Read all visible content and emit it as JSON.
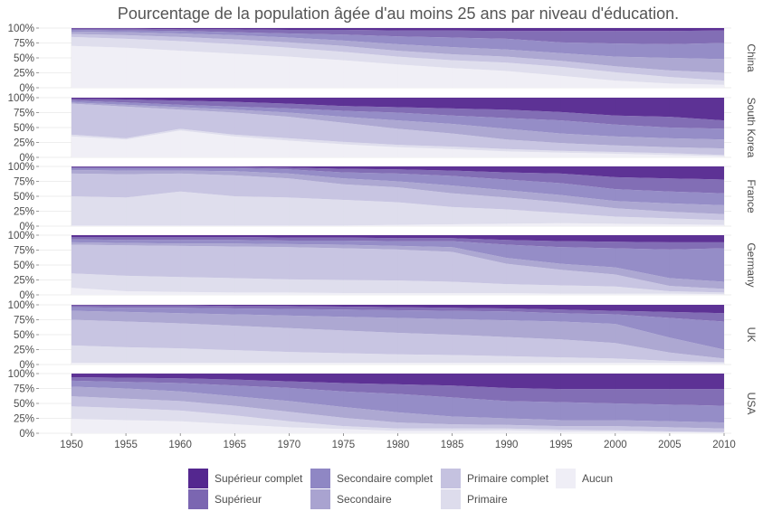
{
  "chart_data": {
    "type": "area",
    "title": "Pourcentage de la population âgée d'au moins 25 ans par niveau d'éducation.",
    "xlabel": "",
    "ylabel": "",
    "ylim": [
      0,
      100
    ],
    "stacked": "percent",
    "x": [
      1950,
      1955,
      1960,
      1965,
      1970,
      1975,
      1980,
      1985,
      1990,
      1995,
      2000,
      2005,
      2010
    ],
    "x_ticks": [
      "1950",
      "1955",
      "1960",
      "1965",
      "1970",
      "1975",
      "1980",
      "1985",
      "1990",
      "1995",
      "2000",
      "2005",
      "2010"
    ],
    "y_ticks": [
      "0%",
      "25%",
      "50%",
      "75%",
      "100%"
    ],
    "legend_position": "bottom",
    "series_order_bottom_to_top": [
      "Aucun",
      "Primaire",
      "Primaire complet",
      "Secondaire",
      "Secondaire complet",
      "Supérieur",
      "Supérieur complet"
    ],
    "legend": [
      {
        "label": "Supérieur complet",
        "color": "#54278f"
      },
      {
        "label": "Supérieur",
        "color": "#7b66b1"
      },
      {
        "label": "Secondaire complet",
        "color": "#8f87c4"
      },
      {
        "label": "Secondaire",
        "color": "#a9a3d0"
      },
      {
        "label": "Primaire complet",
        "color": "#c5c2e0"
      },
      {
        "label": "Primaire",
        "color": "#dddcec"
      },
      {
        "label": "Aucun",
        "color": "#efeef6"
      }
    ],
    "panels": [
      {
        "country": "China",
        "cumulative_upper_bounds": [
          [
            70,
            67,
            62,
            57,
            52,
            46,
            39,
            33,
            28,
            20,
            12,
            7,
            5
          ],
          [
            85,
            82,
            78,
            73,
            67,
            60,
            52,
            46,
            42,
            35,
            26,
            18,
            12
          ],
          [
            90,
            88,
            85,
            81,
            76,
            70,
            62,
            56,
            52,
            45,
            36,
            29,
            25
          ],
          [
            94,
            93,
            91,
            88,
            84,
            79,
            73,
            68,
            64,
            58,
            52,
            50,
            48
          ],
          [
            97,
            96,
            95,
            93,
            91,
            89,
            86,
            84,
            82,
            76,
            74,
            73,
            75
          ],
          [
            99,
            99,
            98,
            98,
            97,
            97,
            96,
            96,
            95,
            95,
            95,
            95,
            96
          ],
          [
            100,
            100,
            100,
            100,
            100,
            100,
            100,
            100,
            100,
            100,
            100,
            100,
            100
          ]
        ]
      },
      {
        "country": "South Korea",
        "cumulative_upper_bounds": [
          [
            35,
            30,
            45,
            35,
            28,
            22,
            17,
            14,
            10,
            8,
            6,
            4,
            2
          ],
          [
            38,
            32,
            48,
            38,
            32,
            26,
            21,
            18,
            14,
            11,
            9,
            7,
            4
          ],
          [
            90,
            85,
            80,
            75,
            68,
            58,
            48,
            40,
            30,
            24,
            20,
            17,
            15
          ],
          [
            92,
            88,
            84,
            80,
            75,
            68,
            62,
            56,
            48,
            40,
            35,
            32,
            30
          ],
          [
            95,
            92,
            88,
            85,
            82,
            78,
            75,
            70,
            66,
            62,
            55,
            50,
            48
          ],
          [
            98,
            97,
            95,
            93,
            90,
            86,
            84,
            82,
            80,
            76,
            70,
            68,
            62
          ],
          [
            100,
            100,
            100,
            100,
            100,
            100,
            100,
            100,
            100,
            100,
            100,
            100,
            100
          ]
        ]
      },
      {
        "country": "France",
        "cumulative_upper_bounds": [
          [
            1,
            1,
            1,
            1,
            1,
            1,
            2,
            3,
            4,
            5,
            4,
            3,
            2
          ],
          [
            50,
            48,
            58,
            50,
            48,
            44,
            40,
            32,
            28,
            22,
            16,
            13,
            10
          ],
          [
            88,
            87,
            88,
            85,
            80,
            70,
            65,
            55,
            48,
            40,
            30,
            24,
            20
          ],
          [
            94,
            93,
            93,
            92,
            88,
            80,
            75,
            68,
            60,
            52,
            42,
            38,
            35
          ],
          [
            97,
            97,
            97,
            97,
            95,
            90,
            88,
            84,
            78,
            72,
            62,
            58,
            55
          ],
          [
            99,
            99,
            99,
            99,
            98,
            96,
            95,
            93,
            90,
            88,
            82,
            80,
            78
          ],
          [
            100,
            100,
            100,
            100,
            100,
            100,
            100,
            100,
            100,
            100,
            100,
            100,
            100
          ]
        ]
      },
      {
        "country": "Germany",
        "cumulative_upper_bounds": [
          [
            12,
            6,
            5,
            4,
            4,
            3,
            3,
            3,
            3,
            2,
            2,
            2,
            1
          ],
          [
            36,
            32,
            30,
            28,
            26,
            25,
            24,
            22,
            18,
            16,
            14,
            6,
            4
          ],
          [
            84,
            83,
            82,
            81,
            80,
            78,
            76,
            72,
            52,
            42,
            34,
            15,
            10
          ],
          [
            88,
            87,
            86,
            86,
            85,
            84,
            82,
            80,
            62,
            52,
            46,
            28,
            22
          ],
          [
            93,
            92,
            92,
            92,
            91,
            91,
            90,
            90,
            84,
            80,
            78,
            76,
            78
          ],
          [
            97,
            97,
            97,
            97,
            96,
            96,
            95,
            95,
            92,
            90,
            89,
            88,
            88
          ],
          [
            100,
            100,
            100,
            100,
            100,
            100,
            100,
            100,
            100,
            100,
            100,
            100,
            100
          ]
        ]
      },
      {
        "country": "UK",
        "cumulative_upper_bounds": [
          [
            3,
            3,
            3,
            3,
            3,
            3,
            3,
            3,
            3,
            3,
            3,
            3,
            2
          ],
          [
            32,
            29,
            27,
            24,
            21,
            19,
            17,
            16,
            14,
            12,
            10,
            6,
            4
          ],
          [
            75,
            72,
            69,
            65,
            61,
            57,
            53,
            50,
            46,
            42,
            36,
            20,
            10
          ],
          [
            90,
            88,
            86,
            84,
            82,
            80,
            78,
            76,
            74,
            72,
            68,
            45,
            25
          ],
          [
            96,
            95,
            95,
            94,
            93,
            92,
            91,
            90,
            89,
            86,
            84,
            78,
            72
          ],
          [
            99,
            99,
            99,
            98,
            98,
            97,
            96,
            95,
            94,
            92,
            90,
            88,
            86
          ],
          [
            100,
            100,
            100,
            100,
            100,
            100,
            100,
            100,
            100,
            100,
            100,
            100,
            100
          ]
        ]
      },
      {
        "country": "USA",
        "cumulative_upper_bounds": [
          [
            24,
            22,
            20,
            15,
            10,
            7,
            4,
            4,
            5,
            3,
            3,
            2,
            1
          ],
          [
            45,
            42,
            38,
            30,
            20,
            12,
            8,
            8,
            8,
            6,
            5,
            3,
            2
          ],
          [
            62,
            58,
            54,
            46,
            36,
            26,
            18,
            15,
            14,
            12,
            12,
            10,
            8
          ],
          [
            78,
            75,
            70,
            62,
            54,
            44,
            35,
            28,
            25,
            22,
            22,
            20,
            18
          ],
          [
            88,
            86,
            84,
            80,
            76,
            70,
            66,
            60,
            54,
            52,
            50,
            48,
            46
          ],
          [
            94,
            93,
            92,
            90,
            87,
            84,
            82,
            80,
            76,
            74,
            74,
            74,
            74
          ],
          [
            100,
            100,
            100,
            100,
            100,
            100,
            100,
            100,
            100,
            100,
            100,
            100,
            100
          ]
        ]
      }
    ]
  }
}
